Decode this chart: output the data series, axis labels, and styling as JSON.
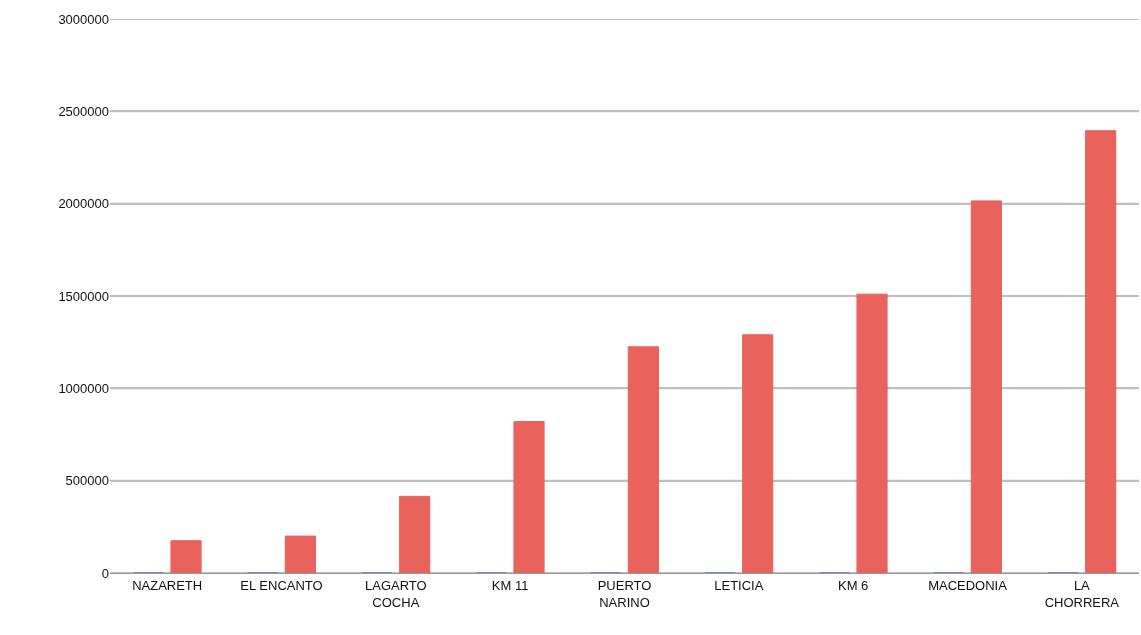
{
  "chart_data": {
    "type": "bar",
    "categories": [
      "NAZARETH",
      "EL ENCANTO",
      "LAGARTO COCHA",
      "KM 11",
      "PUERTO NARINO",
      "LETICIA",
      "KM 6",
      "MACEDONIA",
      "LA CHORRERA"
    ],
    "series": [
      {
        "color": "#4f81bd",
        "values": [
          0,
          0,
          0,
          0,
          0,
          0,
          0,
          0,
          0
        ]
      },
      {
        "color": "#e9625c",
        "values": [
          175000,
          200000,
          415000,
          820000,
          1225000,
          1290000,
          1510000,
          2015000,
          2395000
        ]
      }
    ],
    "ylim": [
      0,
      3000000
    ],
    "yticks": [
      0,
      500000,
      1000000,
      1500000,
      2000000,
      2500000,
      3000000
    ],
    "grid": "y"
  }
}
